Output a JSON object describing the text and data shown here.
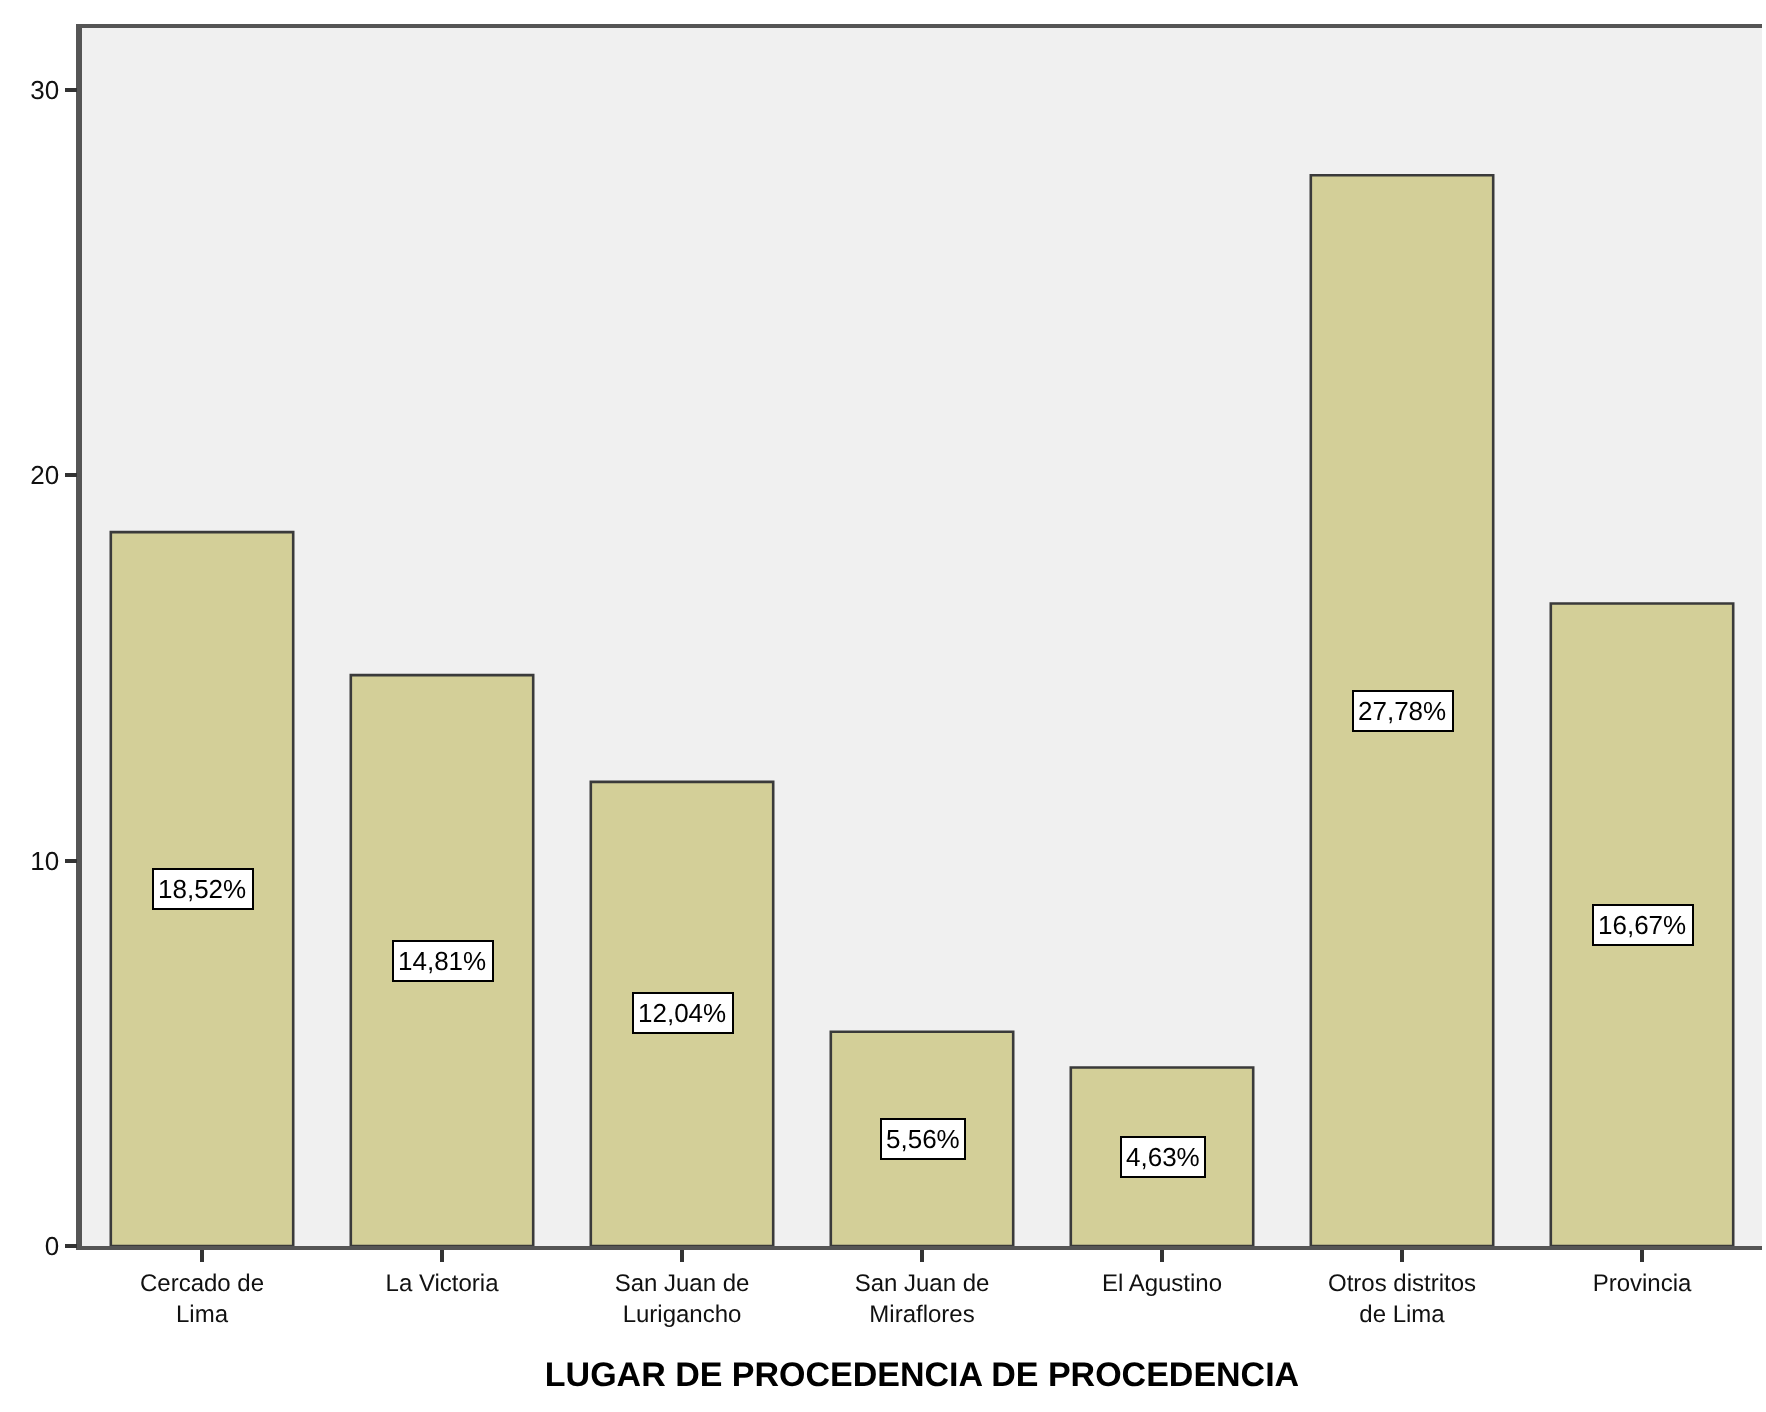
{
  "chart_data": {
    "type": "bar",
    "xlabel": "LUGAR DE PROCEDENCIA DE PROCEDENCIA",
    "categories": [
      "Cercado de\nLima",
      "La Victoria",
      "San Juan de\nLurigancho",
      "San Juan de\nMiraflores",
      "El Agustino",
      "Otros distritos\nde Lima",
      "Provincia"
    ],
    "values": [
      18.52,
      14.81,
      12.04,
      5.56,
      4.63,
      27.78,
      16.67
    ],
    "value_labels": [
      "18,52%",
      "14,81%",
      "12,04%",
      "5,56%",
      "4,63%",
      "27,78%",
      "16,67%"
    ],
    "color": "#d3cf98",
    "ylim": [
      0,
      31.6
    ],
    "yticks": [
      0,
      10,
      20,
      30
    ],
    "grid": false
  }
}
